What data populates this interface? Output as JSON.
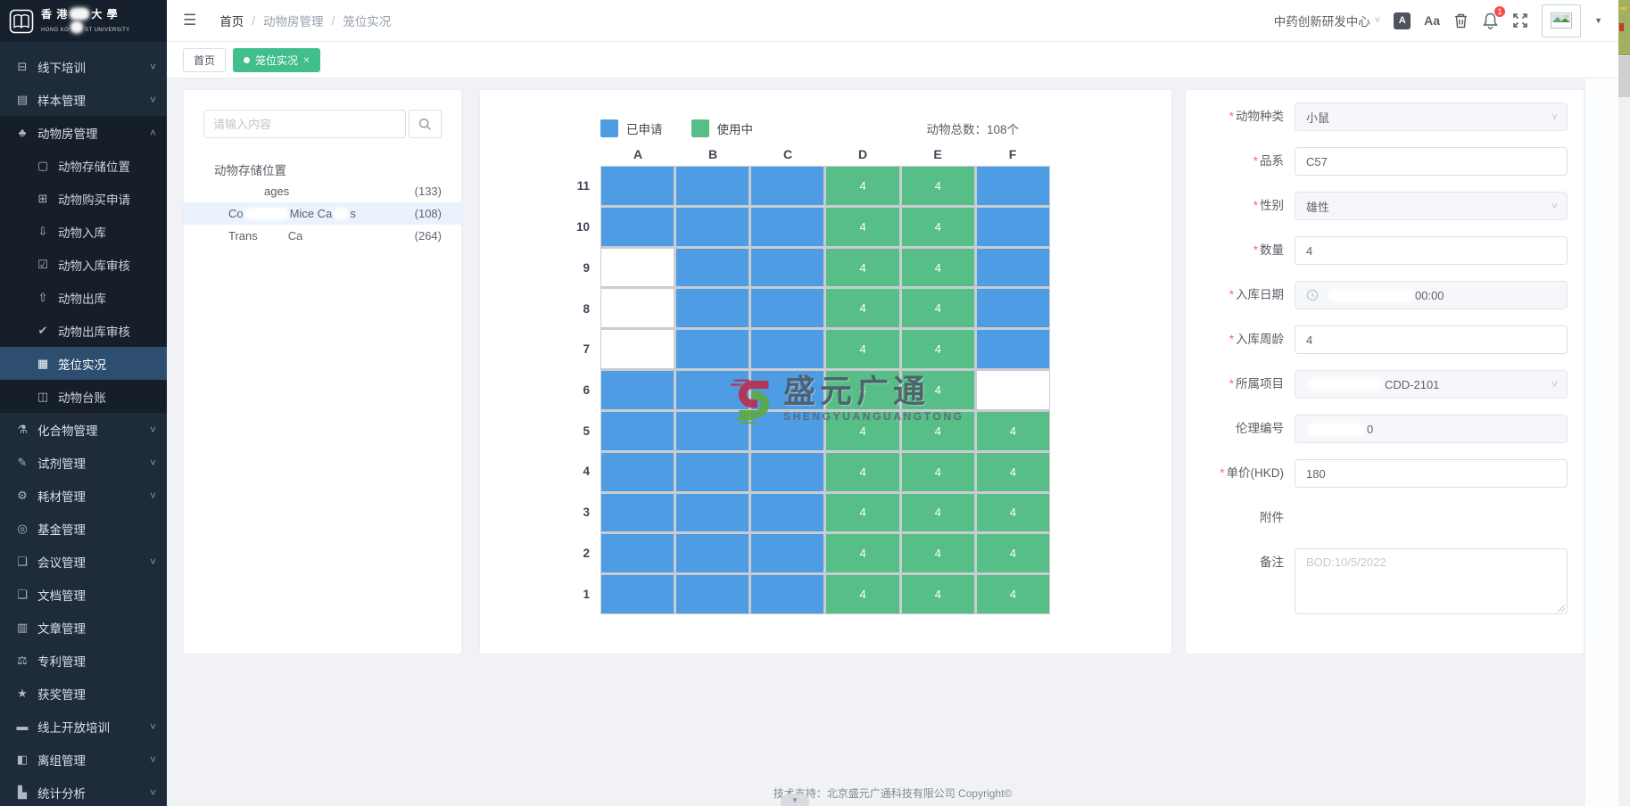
{
  "colors": {
    "applied": "#4D9CE4",
    "inuse": "#56BE86",
    "tab_active": "#42BD8C",
    "sidebar_active": "#2D4E6F",
    "badge": "#F34D4D"
  },
  "sidebar": {
    "logo": {
      "line1": [
        {
          "t": "香 港"
        },
        {
          "r": 22
        },
        {
          "t": "大 學"
        }
      ],
      "line2": [
        {
          "t": "HONG KO"
        },
        {
          "r": 14
        },
        {
          "t": "ST UNIVERSITY"
        }
      ]
    },
    "items": [
      {
        "name": "offline-training",
        "icon": "screen-icon",
        "label": "线下培训",
        "chevron": true
      },
      {
        "name": "sample-mgmt",
        "icon": "samples-icon",
        "label": "样本管理",
        "chevron": true
      },
      {
        "name": "animal-room-mgmt",
        "icon": "paw-icon",
        "label": "动物房管理",
        "chevron": true,
        "open": true,
        "children": [
          {
            "name": "animal-storage-location",
            "icon": "storage-icon",
            "label": "动物存储位置"
          },
          {
            "name": "animal-purchase-request",
            "icon": "purchase-icon",
            "label": "动物购买申请"
          },
          {
            "name": "animal-inbound",
            "icon": "inbound-icon",
            "label": "动物入库"
          },
          {
            "name": "animal-inbound-audit",
            "icon": "inbound-audit-icon",
            "label": "动物入库审核"
          },
          {
            "name": "animal-outbound",
            "icon": "outbound-icon",
            "label": "动物出库"
          },
          {
            "name": "animal-outbound-audit",
            "icon": "outbound-audit-icon",
            "label": "动物出库审核"
          },
          {
            "name": "cage-status",
            "icon": "cage-grid-icon",
            "label": "笼位实况",
            "active": true
          },
          {
            "name": "animal-ledger",
            "icon": "ledger-icon",
            "label": "动物台账"
          }
        ]
      },
      {
        "name": "compound-mgmt",
        "icon": "compound-icon",
        "label": "化合物管理",
        "chevron": true
      },
      {
        "name": "reagent-mgmt",
        "icon": "reagent-icon",
        "label": "试剂管理",
        "chevron": true
      },
      {
        "name": "consumables-mgmt",
        "icon": "consumables-icon",
        "label": "耗材管理",
        "chevron": true
      },
      {
        "name": "fund-mgmt",
        "icon": "fund-icon",
        "label": "基金管理"
      },
      {
        "name": "meeting-mgmt",
        "icon": "meeting-icon",
        "label": "会议管理",
        "chevron": true
      },
      {
        "name": "document-mgmt",
        "icon": "document-icon",
        "label": "文档管理"
      },
      {
        "name": "article-mgmt",
        "icon": "article-icon",
        "label": "文章管理"
      },
      {
        "name": "patent-mgmt",
        "icon": "patent-icon",
        "label": "专利管理"
      },
      {
        "name": "award-mgmt",
        "icon": "award-icon",
        "label": "获奖管理"
      },
      {
        "name": "online-open-training",
        "icon": "online-training-icon",
        "label": "线上开放培训",
        "chevron": true
      },
      {
        "name": "group-mgmt",
        "icon": "group-icon",
        "label": "离组管理",
        "chevron": true
      },
      {
        "name": "stats-analysis",
        "icon": "stats-icon",
        "label": "统计分析",
        "chevron": true
      }
    ]
  },
  "header": {
    "breadcrumb": [
      "首页",
      "动物房管理",
      "笼位实况"
    ],
    "org": "中药创新研发中心",
    "translate_label": "A",
    "font_size_label": "Aa",
    "bell_badge": "1"
  },
  "tabs": [
    {
      "label": "首页",
      "active": false,
      "closable": false
    },
    {
      "label": "笼位实况",
      "active": true,
      "closable": true
    }
  ],
  "tree_panel": {
    "search_placeholder": "请输入内容",
    "root_label": "动物存储位置",
    "items": [
      {
        "name": "cages",
        "segments": [
          {
            "r": 36
          },
          {
            "t": "ages"
          }
        ],
        "count": "(133)",
        "selected": false
      },
      {
        "name": "conventional-mice-cages",
        "segments": [
          {
            "t": "Co"
          },
          {
            "r": 48
          },
          {
            "t": "Mice Ca"
          },
          {
            "r": 16
          },
          {
            "t": "s"
          }
        ],
        "count": "(108)",
        "selected": true
      },
      {
        "name": "trans-cages",
        "segments": [
          {
            "t": "Trans"
          },
          {
            "r": 30
          },
          {
            "t": "Ca"
          },
          {
            "r": 14
          }
        ],
        "count": "(264)",
        "selected": false
      }
    ]
  },
  "cage_panel": {
    "legend": [
      {
        "label": "已申请",
        "key": "applied"
      },
      {
        "label": "使用中",
        "key": "inuse"
      }
    ],
    "total": "动物总数：108个",
    "columns": [
      "A",
      "B",
      "C",
      "D",
      "E",
      "F"
    ],
    "inuse_value": "4",
    "rows": [
      {
        "label": "11",
        "cells": [
          "applied",
          "applied",
          "applied",
          "inuse",
          "inuse",
          "applied"
        ]
      },
      {
        "label": "10",
        "cells": [
          "applied",
          "applied",
          "applied",
          "inuse",
          "inuse",
          "applied"
        ]
      },
      {
        "label": "9",
        "cells": [
          "empty",
          "applied",
          "applied",
          "inuse",
          "inuse",
          "applied"
        ]
      },
      {
        "label": "8",
        "cells": [
          "empty",
          "applied",
          "applied",
          "inuse",
          "inuse",
          "applied"
        ]
      },
      {
        "label": "7",
        "cells": [
          "empty",
          "applied",
          "applied",
          "inuse",
          "inuse",
          "applied"
        ]
      },
      {
        "label": "6",
        "cells": [
          "applied",
          "applied",
          "applied",
          "inuse",
          "inuse",
          "empty"
        ]
      },
      {
        "label": "5",
        "cells": [
          "applied",
          "applied",
          "applied",
          "inuse",
          "inuse",
          "inuse"
        ]
      },
      {
        "label": "4",
        "cells": [
          "applied",
          "applied",
          "applied",
          "inuse",
          "inuse",
          "inuse"
        ]
      },
      {
        "label": "3",
        "cells": [
          "applied",
          "applied",
          "applied",
          "inuse",
          "inuse",
          "inuse"
        ]
      },
      {
        "label": "2",
        "cells": [
          "applied",
          "applied",
          "applied",
          "inuse",
          "inuse",
          "inuse"
        ]
      },
      {
        "label": "1",
        "cells": [
          "applied",
          "applied",
          "applied",
          "inuse",
          "inuse",
          "inuse"
        ]
      }
    ],
    "watermark": {
      "title": "盛元广通",
      "subtitle": "SHENGYUANGUANGTONG"
    }
  },
  "form_panel": {
    "fields": [
      {
        "name": "animal-species",
        "label": "动物种类",
        "required": true,
        "control": "select",
        "disabled": true,
        "value": [
          {
            "t": "小鼠"
          }
        ]
      },
      {
        "name": "strain",
        "label": "品系",
        "required": true,
        "control": "input",
        "value": [
          {
            "t": "C57"
          }
        ]
      },
      {
        "name": "sex",
        "label": "性别",
        "required": true,
        "control": "select",
        "disabled": true,
        "value": [
          {
            "t": "雄性"
          }
        ]
      },
      {
        "name": "quantity",
        "label": "数量",
        "required": true,
        "control": "input",
        "value": [
          {
            "t": "4"
          }
        ]
      },
      {
        "name": "inbound-date",
        "label": "入库日期",
        "required": true,
        "control": "date",
        "disabled": true,
        "value": [
          {
            "r": 96
          },
          {
            "t": "00:00"
          }
        ]
      },
      {
        "name": "inbound-age-weeks",
        "label": "入库周龄",
        "required": true,
        "control": "input",
        "value": [
          {
            "t": "4"
          }
        ]
      },
      {
        "name": "project",
        "label": "所属项目",
        "required": true,
        "control": "select",
        "disabled": true,
        "value": [
          {
            "r": 84
          },
          {
            "t": "CDD-2101"
          }
        ]
      },
      {
        "name": "ethics-no",
        "label": "伦理编号",
        "required": false,
        "control": "input",
        "disabled": true,
        "value": [
          {
            "r": 64
          },
          {
            "t": "0"
          }
        ]
      },
      {
        "name": "unit-price-hkd",
        "label": "单价(HKD)",
        "required": true,
        "control": "input",
        "value": [
          {
            "t": "180"
          }
        ]
      },
      {
        "name": "attachment",
        "label": "附件",
        "required": false,
        "control": "none",
        "value": []
      },
      {
        "name": "remarks",
        "label": "备注",
        "required": false,
        "control": "textarea",
        "placeholder": "BOD:10/5/2022",
        "value": []
      }
    ]
  },
  "footer": {
    "text": "技术支持：北京盛元广通科技有限公司 Copyright©"
  }
}
